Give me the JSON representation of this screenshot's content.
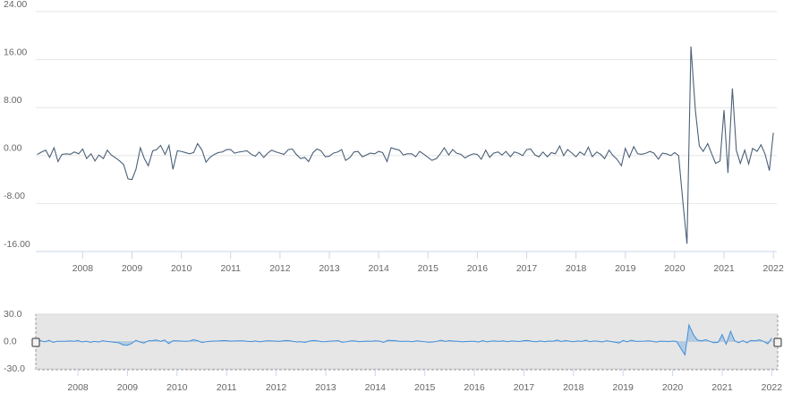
{
  "chart_data": {
    "type": "line",
    "color": "#4b6078",
    "grid": true,
    "xlim": [
      2007.05,
      2022.07
    ],
    "ylim": [
      -16,
      24
    ],
    "xticks": [
      2008,
      2009,
      2010,
      2011,
      2012,
      2013,
      2014,
      2015,
      2016,
      2017,
      2018,
      2019,
      2020,
      2021,
      2022
    ],
    "yticks": [
      {
        "value": 24,
        "label": "24.00"
      },
      {
        "value": 16,
        "label": "16.00"
      },
      {
        "value": 8,
        "label": "8.00"
      },
      {
        "value": 0,
        "label": "0.00"
      },
      {
        "value": -8,
        "label": "-8.00"
      },
      {
        "value": -16,
        "label": "-16.00"
      }
    ],
    "x": [
      2007.08,
      2007.17,
      2007.25,
      2007.33,
      2007.42,
      2007.5,
      2007.58,
      2007.67,
      2007.75,
      2007.83,
      2007.92,
      2008,
      2008.08,
      2008.17,
      2008.25,
      2008.33,
      2008.42,
      2008.5,
      2008.58,
      2008.67,
      2008.75,
      2008.83,
      2008.92,
      2009,
      2009.08,
      2009.17,
      2009.25,
      2009.33,
      2009.42,
      2009.5,
      2009.58,
      2009.67,
      2009.75,
      2009.83,
      2009.92,
      2010,
      2010.08,
      2010.17,
      2010.25,
      2010.33,
      2010.42,
      2010.5,
      2010.58,
      2010.67,
      2010.75,
      2010.83,
      2010.92,
      2011,
      2011.08,
      2011.17,
      2011.25,
      2011.33,
      2011.42,
      2011.5,
      2011.58,
      2011.67,
      2011.75,
      2011.83,
      2011.92,
      2012,
      2012.08,
      2012.17,
      2012.25,
      2012.33,
      2012.42,
      2012.5,
      2012.58,
      2012.67,
      2012.75,
      2012.83,
      2012.92,
      2013,
      2013.08,
      2013.17,
      2013.25,
      2013.33,
      2013.42,
      2013.5,
      2013.58,
      2013.67,
      2013.75,
      2013.83,
      2013.92,
      2014,
      2014.08,
      2014.17,
      2014.25,
      2014.33,
      2014.42,
      2014.5,
      2014.58,
      2014.67,
      2014.75,
      2014.83,
      2014.92,
      2015,
      2015.08,
      2015.17,
      2015.25,
      2015.33,
      2015.42,
      2015.5,
      2015.58,
      2015.67,
      2015.75,
      2015.83,
      2015.92,
      2016,
      2016.08,
      2016.17,
      2016.25,
      2016.33,
      2016.42,
      2016.5,
      2016.58,
      2016.67,
      2016.75,
      2016.83,
      2016.92,
      2017,
      2017.08,
      2017.17,
      2017.25,
      2017.33,
      2017.42,
      2017.5,
      2017.58,
      2017.67,
      2017.75,
      2017.83,
      2017.92,
      2018,
      2018.08,
      2018.17,
      2018.25,
      2018.33,
      2018.42,
      2018.5,
      2018.58,
      2018.67,
      2018.75,
      2018.83,
      2018.92,
      2019,
      2019.08,
      2019.17,
      2019.25,
      2019.33,
      2019.42,
      2019.5,
      2019.58,
      2019.67,
      2019.75,
      2019.83,
      2019.92,
      2020,
      2020.08,
      2020.17,
      2020.25,
      2020.33,
      2020.42,
      2020.5,
      2020.58,
      2020.67,
      2020.75,
      2020.83,
      2020.92,
      2021,
      2021.08,
      2021.17,
      2021.25,
      2021.33,
      2021.42,
      2021.5,
      2021.58,
      2021.67,
      2021.75,
      2021.83,
      2021.92,
      2022
    ],
    "values": [
      0.2,
      0.6,
      0.9,
      -0.3,
      1.3,
      -1.0,
      0.2,
      0.3,
      0.2,
      0.6,
      0.3,
      1.1,
      -0.5,
      0.3,
      -0.9,
      0.1,
      -0.5,
      0.9,
      0.1,
      -0.4,
      -0.9,
      -1.5,
      -3.9,
      -4.0,
      -2.3,
      1.3,
      -0.5,
      -1.7,
      0.8,
      1.0,
      1.7,
      0.2,
      1.7,
      -2.3,
      0.8,
      0.7,
      0.5,
      0.3,
      0.5,
      2.0,
      0.9,
      -1.1,
      -0.3,
      0.2,
      0.5,
      0.6,
      1.0,
      1.0,
      0.4,
      0.6,
      0.7,
      0.8,
      0.2,
      -0.1,
      0.6,
      -0.3,
      0.4,
      0.9,
      0.6,
      0.4,
      0.2,
      1.0,
      1.1,
      0.2,
      -0.5,
      -0.3,
      -1.0,
      0.5,
      1.1,
      0.8,
      -0.2,
      -0.1,
      0.4,
      0.6,
      1.0,
      -0.8,
      -0.3,
      0.6,
      0.7,
      -0.2,
      0.1,
      0.4,
      0.3,
      0.7,
      0.5,
      -1.0,
      1.3,
      1.1,
      0.9,
      0.1,
      0.3,
      0.3,
      -0.2,
      0.7,
      0.2,
      -0.3,
      -0.8,
      -0.5,
      0.3,
      1.3,
      0.1,
      1.0,
      0.4,
      0.2,
      -0.4,
      0.0,
      0.3,
      0.2,
      -0.6,
      0.9,
      -0.3,
      0.4,
      0.6,
      0.1,
      0.7,
      -0.2,
      0.6,
      0.4,
      0.0,
      1.0,
      1.1,
      0.1,
      -0.2,
      0.6,
      -0.2,
      0.5,
      0.3,
      1.6,
      0.0,
      1.0,
      0.4,
      -0.2,
      0.6,
      0.1,
      1.4,
      -0.2,
      0.6,
      0.2,
      -0.5,
      0.9,
      0.0,
      -0.6,
      -1.7,
      1.2,
      -0.3,
      1.5,
      0.3,
      0.2,
      0.4,
      0.7,
      0.4,
      -0.6,
      0.4,
      0.3,
      0.0,
      0.5,
      0.0,
      -8.0,
      -14.7,
      18.2,
      7.5,
      1.6,
      0.7,
      2.0,
      0.3,
      -1.3,
      -0.9,
      7.6,
      -2.9,
      11.2,
      0.9,
      -1.3,
      0.9,
      -1.4,
      1.2,
      0.7,
      1.8,
      0.3,
      -2.5,
      3.8
    ],
    "navigator": {
      "color": "#3d8fdc",
      "xlim": [
        2007.15,
        2022.12
      ],
      "ylim": [
        -30,
        30
      ],
      "yticks": [
        {
          "value": 30,
          "label": "30.0"
        },
        {
          "value": 0,
          "label": "0.0"
        },
        {
          "value": -30,
          "label": "-30.0"
        }
      ]
    }
  }
}
